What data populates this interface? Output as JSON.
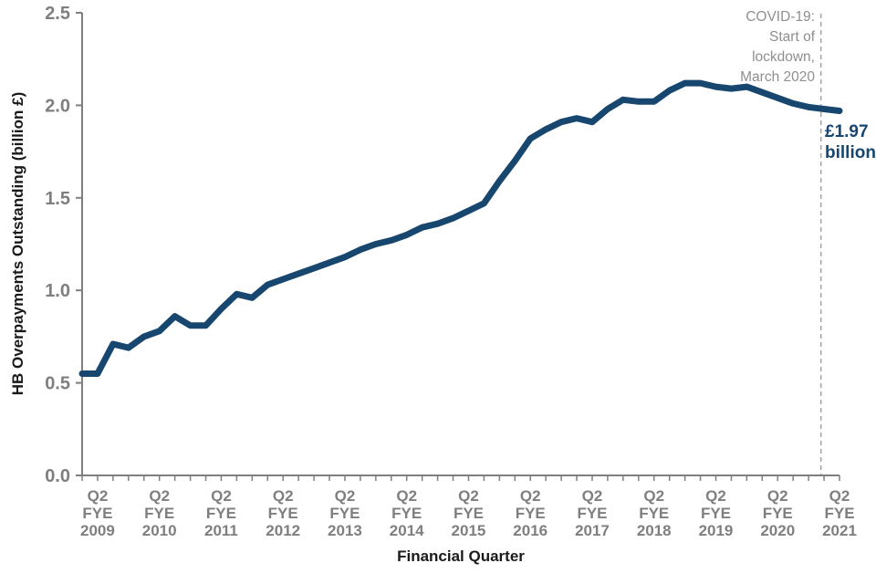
{
  "figure": {
    "y_axis_title": "HB Overpayments Outstanding (billion £)",
    "x_axis_title": "Financial Quarter",
    "covid_annotation": {
      "lines": [
        "COVID-19:",
        "Start of",
        "lockdown,",
        "March 2020"
      ]
    },
    "value_label": {
      "lines": [
        "£1.97",
        "billion"
      ]
    }
  },
  "colors": {
    "line": "#17466f",
    "axis": "#7f7f7f",
    "tick_label": "#7f7f7f",
    "annotation_text": "#8f8f8f",
    "dashed_line": "#a3a3a3",
    "value_label": "#17466f",
    "axis_title": "#1a1a1a"
  },
  "chart_data": {
    "type": "line",
    "title": "",
    "xlabel": "Financial Quarter",
    "ylabel": "HB Overpayments Outstanding (billion £)",
    "ylim": [
      0.0,
      2.5
    ],
    "grid": false,
    "legend": false,
    "y_ticks": [
      "0.0",
      "0.5",
      "1.0",
      "1.5",
      "2.0",
      "2.5"
    ],
    "x": [
      "Q1 FYE 2009",
      "Q2 FYE 2009",
      "Q3 FYE 2009",
      "Q4 FYE 2009",
      "Q1 FYE 2010",
      "Q2 FYE 2010",
      "Q3 FYE 2010",
      "Q4 FYE 2010",
      "Q1 FYE 2011",
      "Q2 FYE 2011",
      "Q3 FYE 2011",
      "Q4 FYE 2011",
      "Q1 FYE 2012",
      "Q2 FYE 2012",
      "Q3 FYE 2012",
      "Q4 FYE 2012",
      "Q1 FYE 2013",
      "Q2 FYE 2013",
      "Q3 FYE 2013",
      "Q4 FYE 2013",
      "Q1 FYE 2014",
      "Q2 FYE 2014",
      "Q3 FYE 2014",
      "Q4 FYE 2014",
      "Q1 FYE 2015",
      "Q2 FYE 2015",
      "Q3 FYE 2015",
      "Q4 FYE 2015",
      "Q1 FYE 2016",
      "Q2 FYE 2016",
      "Q3 FYE 2016",
      "Q4 FYE 2016",
      "Q1 FYE 2017",
      "Q2 FYE 2017",
      "Q3 FYE 2017",
      "Q4 FYE 2017",
      "Q1 FYE 2018",
      "Q2 FYE 2018",
      "Q3 FYE 2018",
      "Q4 FYE 2018",
      "Q1 FYE 2019",
      "Q2 FYE 2019",
      "Q3 FYE 2019",
      "Q4 FYE 2019",
      "Q1 FYE 2020",
      "Q2 FYE 2020",
      "Q3 FYE 2020",
      "Q4 FYE 2020",
      "Q1 FYE 2021",
      "Q2 FYE 2021"
    ],
    "values": [
      0.55,
      0.55,
      0.71,
      0.69,
      0.75,
      0.78,
      0.86,
      0.81,
      0.81,
      0.9,
      0.98,
      0.96,
      1.03,
      1.06,
      1.09,
      1.12,
      1.15,
      1.18,
      1.22,
      1.25,
      1.27,
      1.3,
      1.34,
      1.36,
      1.39,
      1.43,
      1.47,
      1.59,
      1.7,
      1.82,
      1.87,
      1.91,
      1.93,
      1.91,
      1.98,
      2.03,
      2.02,
      2.02,
      2.08,
      2.12,
      2.12,
      2.1,
      2.09,
      2.1,
      2.07,
      2.04,
      2.01,
      1.99,
      1.98,
      1.97
    ],
    "x_major_tick_labels": [
      {
        "index": 1,
        "lines": [
          "Q2",
          "FYE",
          "2009"
        ]
      },
      {
        "index": 5,
        "lines": [
          "Q2",
          "FYE",
          "2010"
        ]
      },
      {
        "index": 9,
        "lines": [
          "Q2",
          "FYE",
          "2011"
        ]
      },
      {
        "index": 13,
        "lines": [
          "Q2",
          "FYE",
          "2012"
        ]
      },
      {
        "index": 17,
        "lines": [
          "Q2",
          "FYE",
          "2013"
        ]
      },
      {
        "index": 21,
        "lines": [
          "Q2",
          "FYE",
          "2014"
        ]
      },
      {
        "index": 25,
        "lines": [
          "Q2",
          "FYE",
          "2015"
        ]
      },
      {
        "index": 29,
        "lines": [
          "Q2",
          "FYE",
          "2016"
        ]
      },
      {
        "index": 33,
        "lines": [
          "Q2",
          "FYE",
          "2017"
        ]
      },
      {
        "index": 37,
        "lines": [
          "Q2",
          "FYE",
          "2018"
        ]
      },
      {
        "index": 41,
        "lines": [
          "Q2",
          "FYE",
          "2019"
        ]
      },
      {
        "index": 45,
        "lines": [
          "Q2",
          "FYE",
          "2020"
        ]
      },
      {
        "index": 49,
        "lines": [
          "Q2",
          "FYE",
          "2021"
        ]
      }
    ],
    "covid_marker_index": 47.8,
    "final_value_annotation": "£1.97 billion",
    "covid_annotation": "COVID-19: Start of lockdown, March 2020"
  }
}
